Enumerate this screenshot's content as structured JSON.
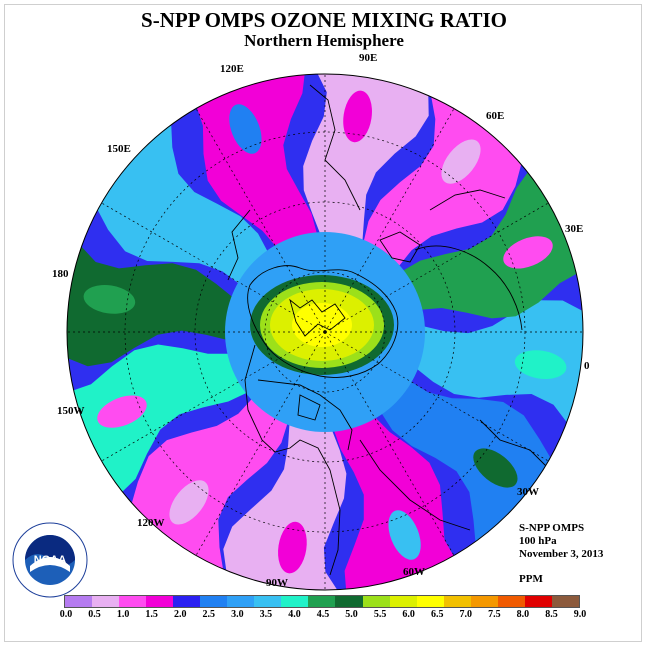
{
  "title": "S-NPP OMPS OZONE MIXING RATIO",
  "subtitle": "Northern Hemisphere",
  "longitude_labels": [
    "120E",
    "90E",
    "60E",
    "150E",
    "30E",
    "180",
    "0",
    "150W",
    "30W",
    "120W",
    "60W",
    "90W"
  ],
  "info": {
    "instrument": "S-NPP OMPS",
    "level": "100 hPa",
    "date": "November 3, 2013",
    "units": "PPM"
  },
  "logo": {
    "text": "NOAA"
  },
  "colorbar": {
    "ticks": [
      "0.0",
      "0.5",
      "1.0",
      "1.5",
      "2.0",
      "2.5",
      "3.0",
      "3.5",
      "4.0",
      "4.5",
      "5.0",
      "5.5",
      "6.0",
      "6.5",
      "7.0",
      "7.5",
      "8.0",
      "8.5",
      "9.0"
    ],
    "colors": [
      "#b57bf0",
      "#e8b0f2",
      "#ff4cf0",
      "#f200d7",
      "#2b20f2",
      "#2080f2",
      "#2fa0f6",
      "#38c0f2",
      "#20f2c8",
      "#20a050",
      "#106a30",
      "#9ce01a",
      "#dcf000",
      "#ffff00",
      "#f2c000",
      "#f49800",
      "#f05a00",
      "#e00000",
      "#8c5a3c"
    ]
  },
  "map": {
    "projection": "north polar stereographic",
    "background_color": "#2f2ff0",
    "arm_bands": [
      "#38c0f2",
      "#2080f2",
      "#f200d7",
      "#e8b0f2",
      "#ff4cf0",
      "#20f2c8",
      "#106a30",
      "#38c0f2",
      "#f200d7",
      "#e8b0f2",
      "#ff4cf0",
      "#20a050"
    ],
    "polar_vortex": [
      "#106a30",
      "#9ce01a",
      "#dcf000",
      "#ffff00"
    ]
  }
}
